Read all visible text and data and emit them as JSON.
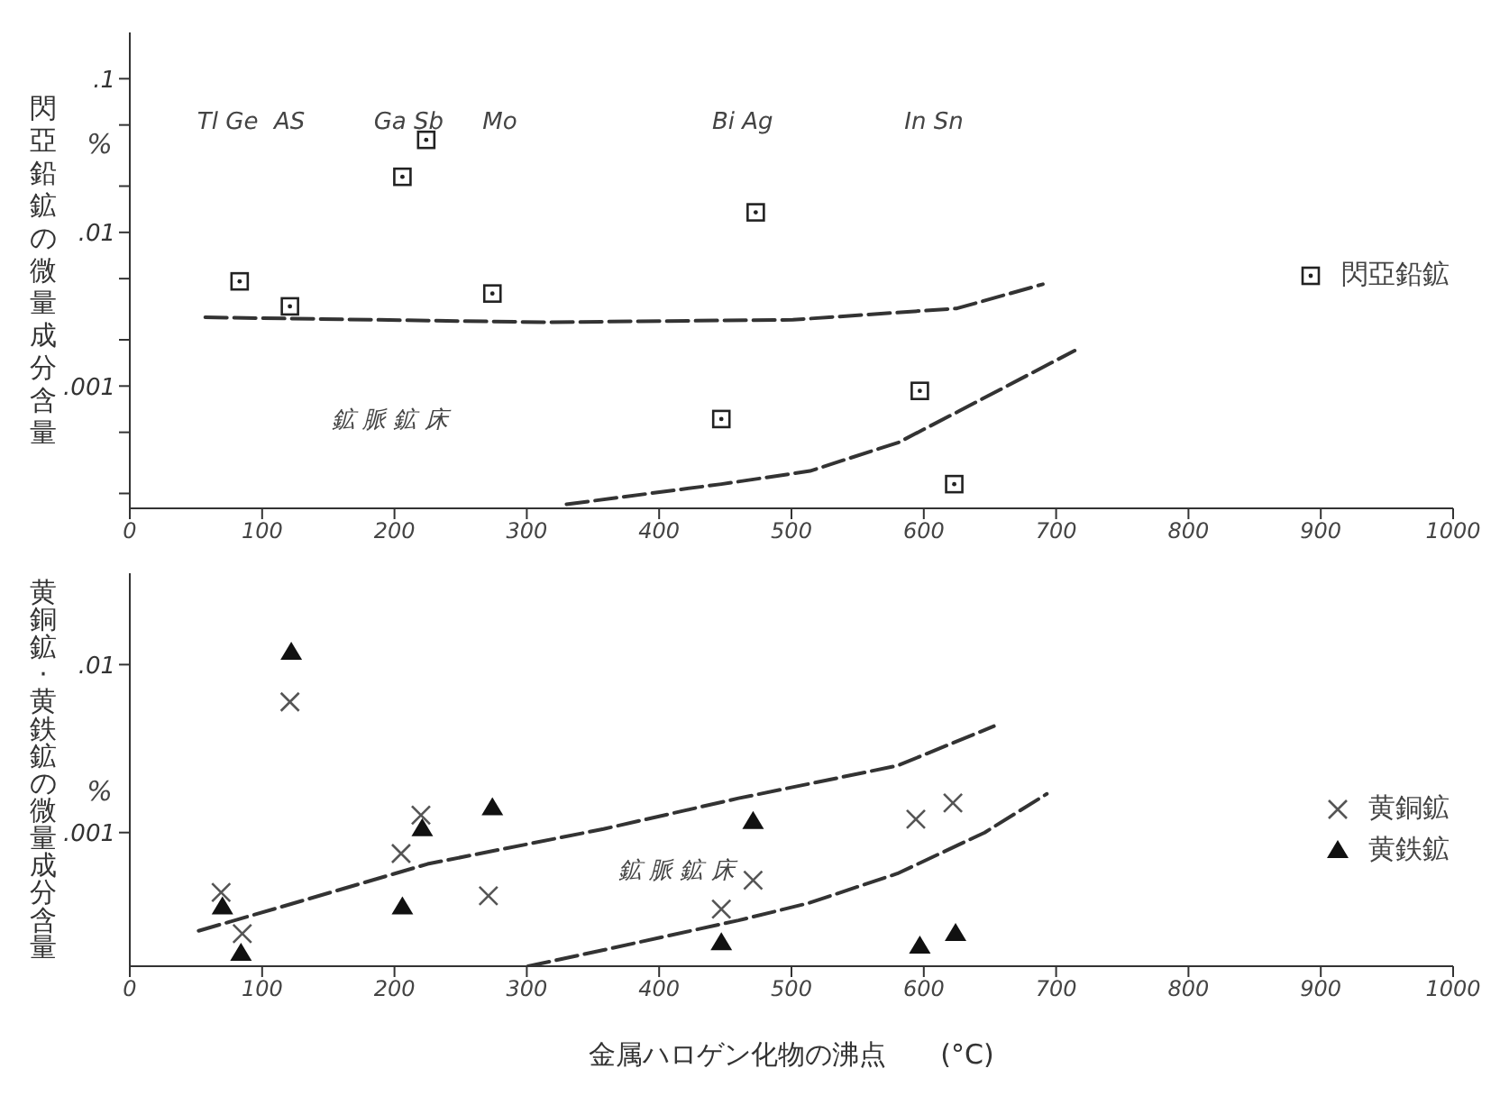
{
  "chart_data": [
    {
      "type": "scatter",
      "ylabel": "閃亞鉛鉱の微量成分含量",
      "xlim": [
        0,
        1000
      ],
      "xticks": [
        0,
        100,
        200,
        300,
        400,
        500,
        600,
        700,
        800,
        900,
        1000
      ],
      "ylim": [
        0.00016,
        0.2
      ],
      "log": "y",
      "yticks": [
        {
          "value": 0.1,
          "label": ".1"
        },
        {
          "value": 0.05,
          "label": null
        },
        {
          "value": 0.02,
          "label": null
        },
        {
          "value": 0.01,
          "label": ".01"
        },
        {
          "value": 0.005,
          "label": null
        },
        {
          "value": 0.002,
          "label": null
        },
        {
          "value": 0.001,
          "label": ".001"
        },
        {
          "value": 0.0005,
          "label": null
        },
        {
          "value": 0.0002,
          "label": null
        }
      ],
      "legend": "right",
      "grid": false,
      "series": [
        {
          "name": "閃亞鉛鉱",
          "color": "#222222",
          "marker": "square",
          "x": [
            83,
            121,
            206,
            224,
            274,
            447,
            473,
            597,
            623
          ],
          "values": [
            0.0048,
            0.0033,
            0.023,
            0.04,
            0.004,
            0.00061,
            0.0135,
            0.00093,
            0.00023
          ]
        },
        {
          "type": "line",
          "color": "#333333",
          "line_style": "dashed",
          "marker": "none",
          "x": [
            57,
            314,
            501,
            625,
            690
          ],
          "values": [
            0.0028,
            0.0026,
            0.0027,
            0.0032,
            0.0046
          ]
        },
        {
          "type": "line",
          "color": "#333333",
          "line_style": "dashed",
          "marker": "none",
          "x": [
            330,
            447,
            514,
            581,
            627,
            714
          ],
          "values": [
            0.00017,
            0.00023,
            0.00028,
            0.00043,
            0.00069,
            0.0017
          ]
        }
      ],
      "annotations": [
        "%",
        "鉱 脈 鉱 床",
        "Tl Ge",
        "AS",
        "Ga Sb",
        "Mo",
        "Bi Ag",
        "In Sn"
      ]
    },
    {
      "type": "scatter",
      "ylabel": "黄銅鉱·黄鉄鉱の微量成分含量",
      "xlabel": "金属ハロゲン化物の沸点　　(°C)",
      "xlim": [
        0,
        1000
      ],
      "xticks": [
        0,
        100,
        200,
        300,
        400,
        500,
        600,
        700,
        800,
        900,
        1000
      ],
      "ylim": [
        0.00016,
        0.035
      ],
      "log": "y",
      "yticks": [
        {
          "value": 0.01,
          "label": ".01"
        },
        {
          "value": 0.001,
          "label": ".001"
        }
      ],
      "legend": "right",
      "grid": false,
      "series": [
        {
          "name": "黄銅鉱",
          "color": "#555555",
          "marker": "cross",
          "x": [
            69,
            85,
            121,
            205,
            220,
            271,
            447,
            471,
            594,
            622
          ],
          "values": [
            0.00044,
            0.00025,
            0.006,
            0.00075,
            0.00127,
            0.00042,
            0.00035,
            0.00052,
            0.0012,
            0.0015
          ]
        },
        {
          "name": "黄鉄鉱",
          "color": "#111111",
          "marker": "triangle",
          "x": [
            70,
            84,
            122,
            206,
            221,
            274,
            447,
            471,
            597,
            624
          ],
          "values": [
            0.00036,
            0.00019,
            0.0118,
            0.00036,
            0.00105,
            0.0014,
            0.00022,
            0.00116,
            0.00021,
            0.00025
          ]
        },
        {
          "type": "line",
          "color": "#333333",
          "line_style": "dashed",
          "marker": "none",
          "x": [
            52,
            114,
            225,
            358,
            460,
            580,
            653
          ],
          "values": [
            0.00026,
            0.00036,
            0.00065,
            0.00105,
            0.0016,
            0.0025,
            0.0043
          ]
        },
        {
          "type": "line",
          "color": "#333333",
          "line_style": "dashed",
          "marker": "none",
          "x": [
            301,
            358,
            460,
            513,
            580,
            646,
            693
          ],
          "values": [
            0.00016,
            0.0002,
            0.0003,
            0.00038,
            0.00057,
            0.001,
            0.0017
          ]
        }
      ],
      "annotations": [
        "%",
        "鉱 脈 鉱 床"
      ]
    }
  ]
}
